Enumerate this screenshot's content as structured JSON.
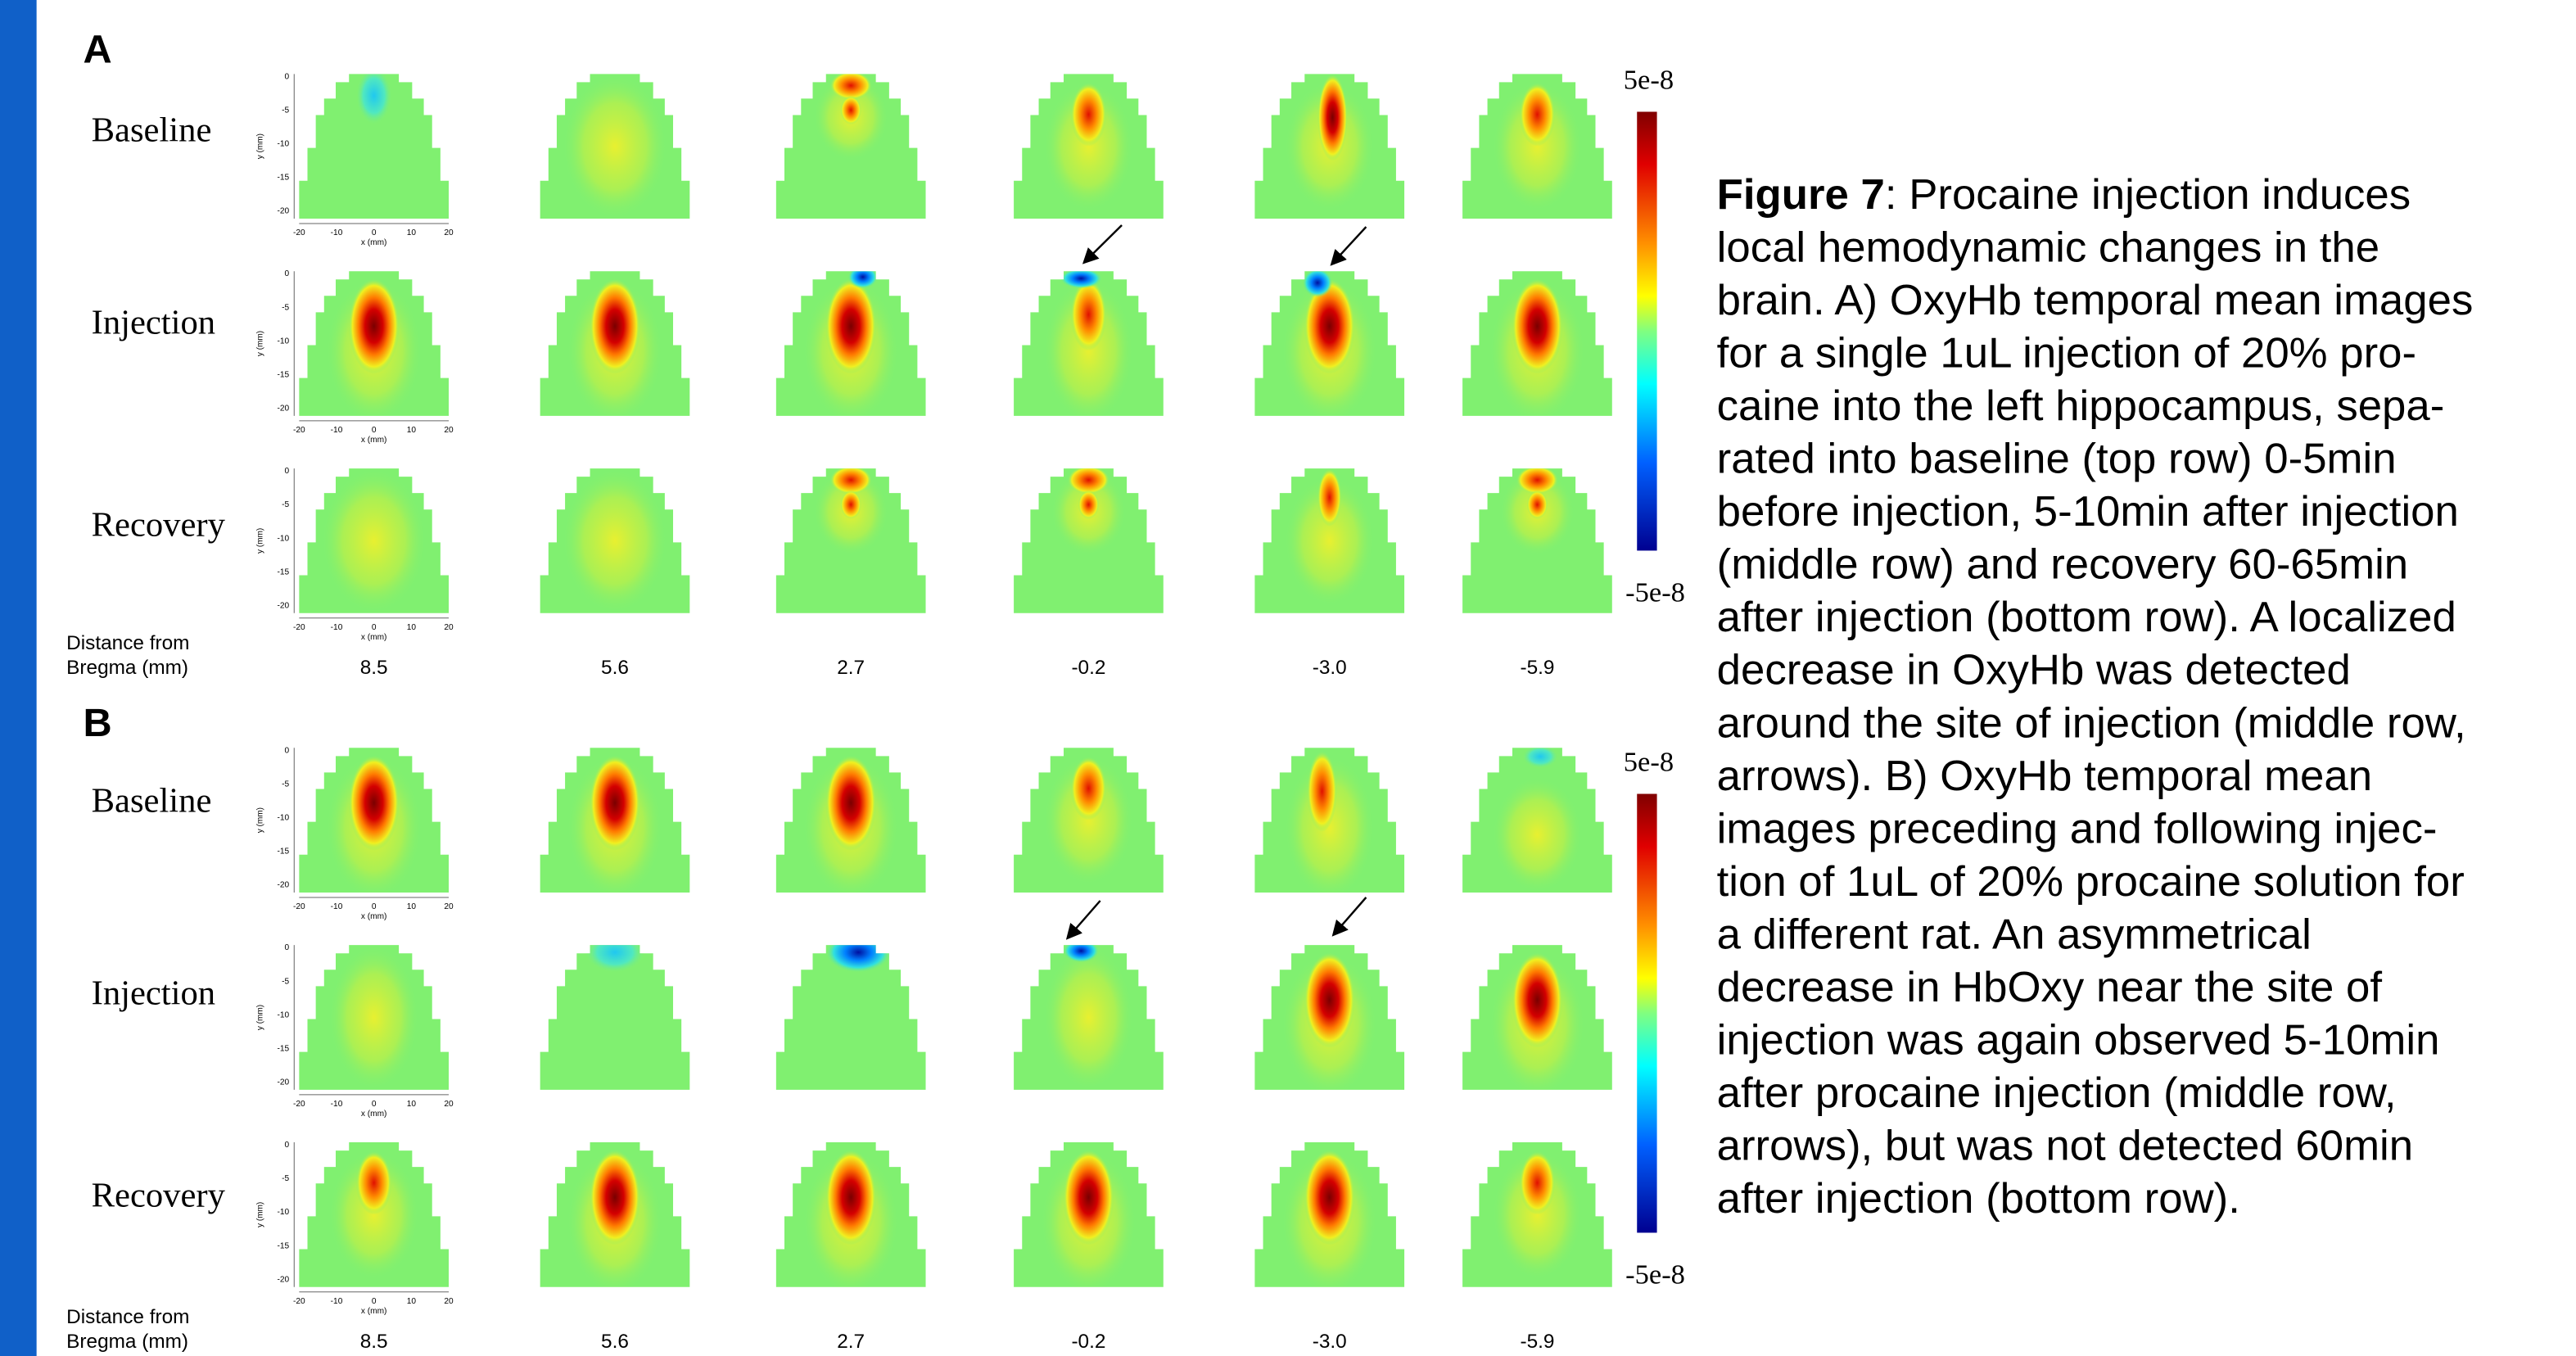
{
  "panels": [
    {
      "label": "A",
      "rows": [
        "Baseline",
        "Injection",
        "Recovery"
      ],
      "distance_label": [
        "Distance  from",
        "Bregma  (mm)"
      ],
      "distances": [
        "8.5",
        "5.6",
        "2.7",
        "-0.2",
        "-3.0",
        "-5.9"
      ],
      "colorbar": {
        "max": "5e-8",
        "min": "-5e-8"
      }
    },
    {
      "label": "B",
      "rows": [
        "Baseline",
        "Injection",
        "Recovery"
      ],
      "distance_label": [
        "Distance  from",
        "Bregma  (mm)"
      ],
      "distances": [
        "8.5",
        "5.6",
        "2.7",
        "-0.2",
        "-3.0",
        "-5.9"
      ],
      "colorbar": {
        "max": "5e-8",
        "min": "-5e-8"
      }
    }
  ],
  "axes": {
    "y_ticks": [
      "0",
      "-5",
      "-10",
      "-15",
      "-20"
    ],
    "x_ticks": [
      "-20",
      "-10",
      "0",
      "10",
      "20"
    ],
    "y_label": "y (mm)",
    "x_label": "x (mm)"
  },
  "caption": {
    "label": "Figure 7",
    "lines": [
      ": Procaine injection induces",
      "local hemodynamic changes in the",
      "brain. A) OxyHb temporal mean images",
      "for a single 1uL injection of 20% pro-",
      "caine into the left hippocampus, sepa-",
      "rated into baseline (top row) 0-5min",
      "before injection, 5-10min after injection",
      "(middle row) and recovery 60-65min",
      "after injection (bottom row).  A localized",
      "decrease in OxyHb was detected",
      "around the site of injection (middle row,",
      "arrows).  B) OxyHb temporal mean",
      "images preceding and following injec-",
      "tion of 1uL of 20% procaine solution for",
      "a different rat.  An asymmetrical",
      "decrease in HbOxy near the site of",
      "injection was again observed 5-10min",
      "after procaine injection (middle row,",
      "arrows), but was not detected 60min",
      "after injection (bottom row)."
    ]
  }
}
